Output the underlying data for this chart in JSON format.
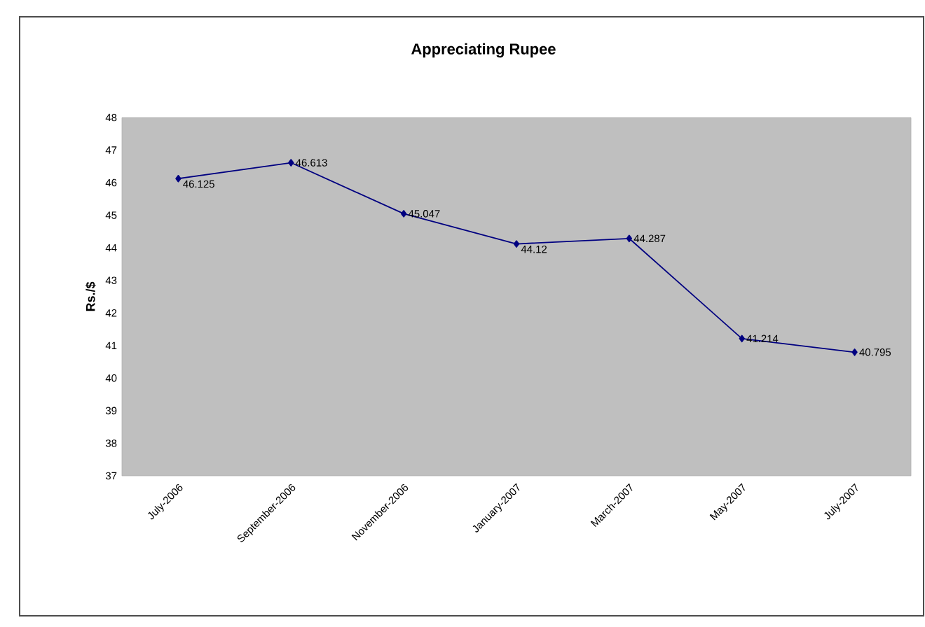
{
  "chart_data": {
    "type": "line",
    "title": "Appreciating Rupee",
    "ylabel": "Rs./$",
    "categories": [
      "July-2006",
      "September-2006",
      "November-2006",
      "January-2007",
      "March-2007",
      "May-2007",
      "July-2007"
    ],
    "series": [
      {
        "color": "#000080",
        "values": [
          46.125,
          46.613,
          45.047,
          44.12,
          44.287,
          41.214,
          40.795
        ]
      }
    ],
    "ylim": [
      37,
      48
    ],
    "yticks": [
      37,
      38,
      39,
      40,
      41,
      42,
      43,
      44,
      45,
      46,
      47,
      48
    ],
    "data_labels": true,
    "marker": "diamond",
    "line_style": "solid"
  }
}
